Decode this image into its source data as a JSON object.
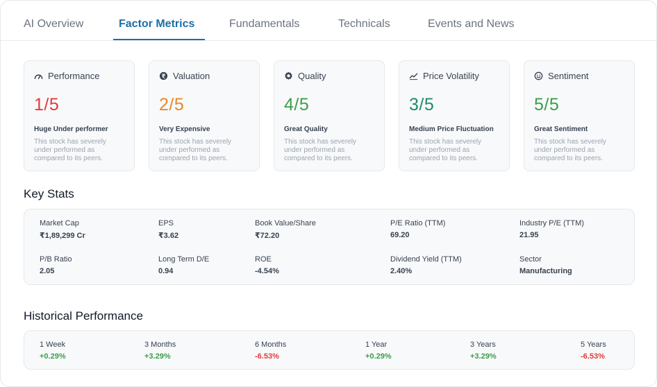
{
  "tabs": [
    {
      "label": "AI Overview"
    },
    {
      "label": "Factor Metrics"
    },
    {
      "label": "Fundamentals"
    },
    {
      "label": "Technicals"
    },
    {
      "label": "Events and News"
    }
  ],
  "active_tab": "Factor Metrics",
  "colors": {
    "accent": "#1b6fa8",
    "red": "#e5383b",
    "orange": "#e8872a",
    "green": "#3a9e4a",
    "teal": "#1f8a6a",
    "positive": "#3a9e4a",
    "negative": "#e5383b"
  },
  "factors": [
    {
      "icon": "speedometer-icon",
      "title": "Performance",
      "score": "1/5",
      "label": "Huge Under performer",
      "description": "This stock has severely under performed as compared to its peers."
    },
    {
      "icon": "rupee-coin-icon",
      "title": "Valuation",
      "score": "2/5",
      "label": "Very Expensive",
      "description": "This stock has severely under performed as compared to its peers."
    },
    {
      "icon": "badge-icon",
      "title": "Quality",
      "score": "4/5",
      "label": "Great Quality",
      "description": "This stock has severely under performed as compared to its peers."
    },
    {
      "icon": "trend-line-icon",
      "title": "Price Volatility",
      "score": "3/5",
      "label": "Medium Price Fluctuation",
      "description": "This stock has severely under performed as compared to its peers."
    },
    {
      "icon": "smiley-icon",
      "title": "Sentiment",
      "score": "5/5",
      "label": "Great Sentiment",
      "description": "This stock has severely under performed as compared to its peers."
    }
  ],
  "key_stats": {
    "title": "Key Stats",
    "items": [
      {
        "label": "Market Cap",
        "value": "₹1,89,299 Cr"
      },
      {
        "label": "EPS",
        "value": "₹3.62"
      },
      {
        "label": "Book Value/Share",
        "value": "₹72.20"
      },
      {
        "label": "P/E Ratio (TTM)",
        "value": "69.20"
      },
      {
        "label": "Industry P/E (TTM)",
        "value": "21.95"
      },
      {
        "label": "P/B Ratio",
        "value": "2.05"
      },
      {
        "label": "Long Term D/E",
        "value": "0.94"
      },
      {
        "label": "ROE",
        "value": "-4.54%"
      },
      {
        "label": "Dividend Yield (TTM)",
        "value": "2.40%"
      },
      {
        "label": "Sector",
        "value": "Manufacturing"
      }
    ]
  },
  "historical": {
    "title": "Historical Performance",
    "items": [
      {
        "label": "1 Week",
        "value": "+0.29%"
      },
      {
        "label": "3 Months",
        "value": "+3.29%"
      },
      {
        "label": "6 Months",
        "value": "-6.53%"
      },
      {
        "label": "1 Year",
        "value": "+0.29%"
      },
      {
        "label": "3 Years",
        "value": "+3.29%"
      },
      {
        "label": "5 Years",
        "value": "-6.53%"
      }
    ]
  }
}
